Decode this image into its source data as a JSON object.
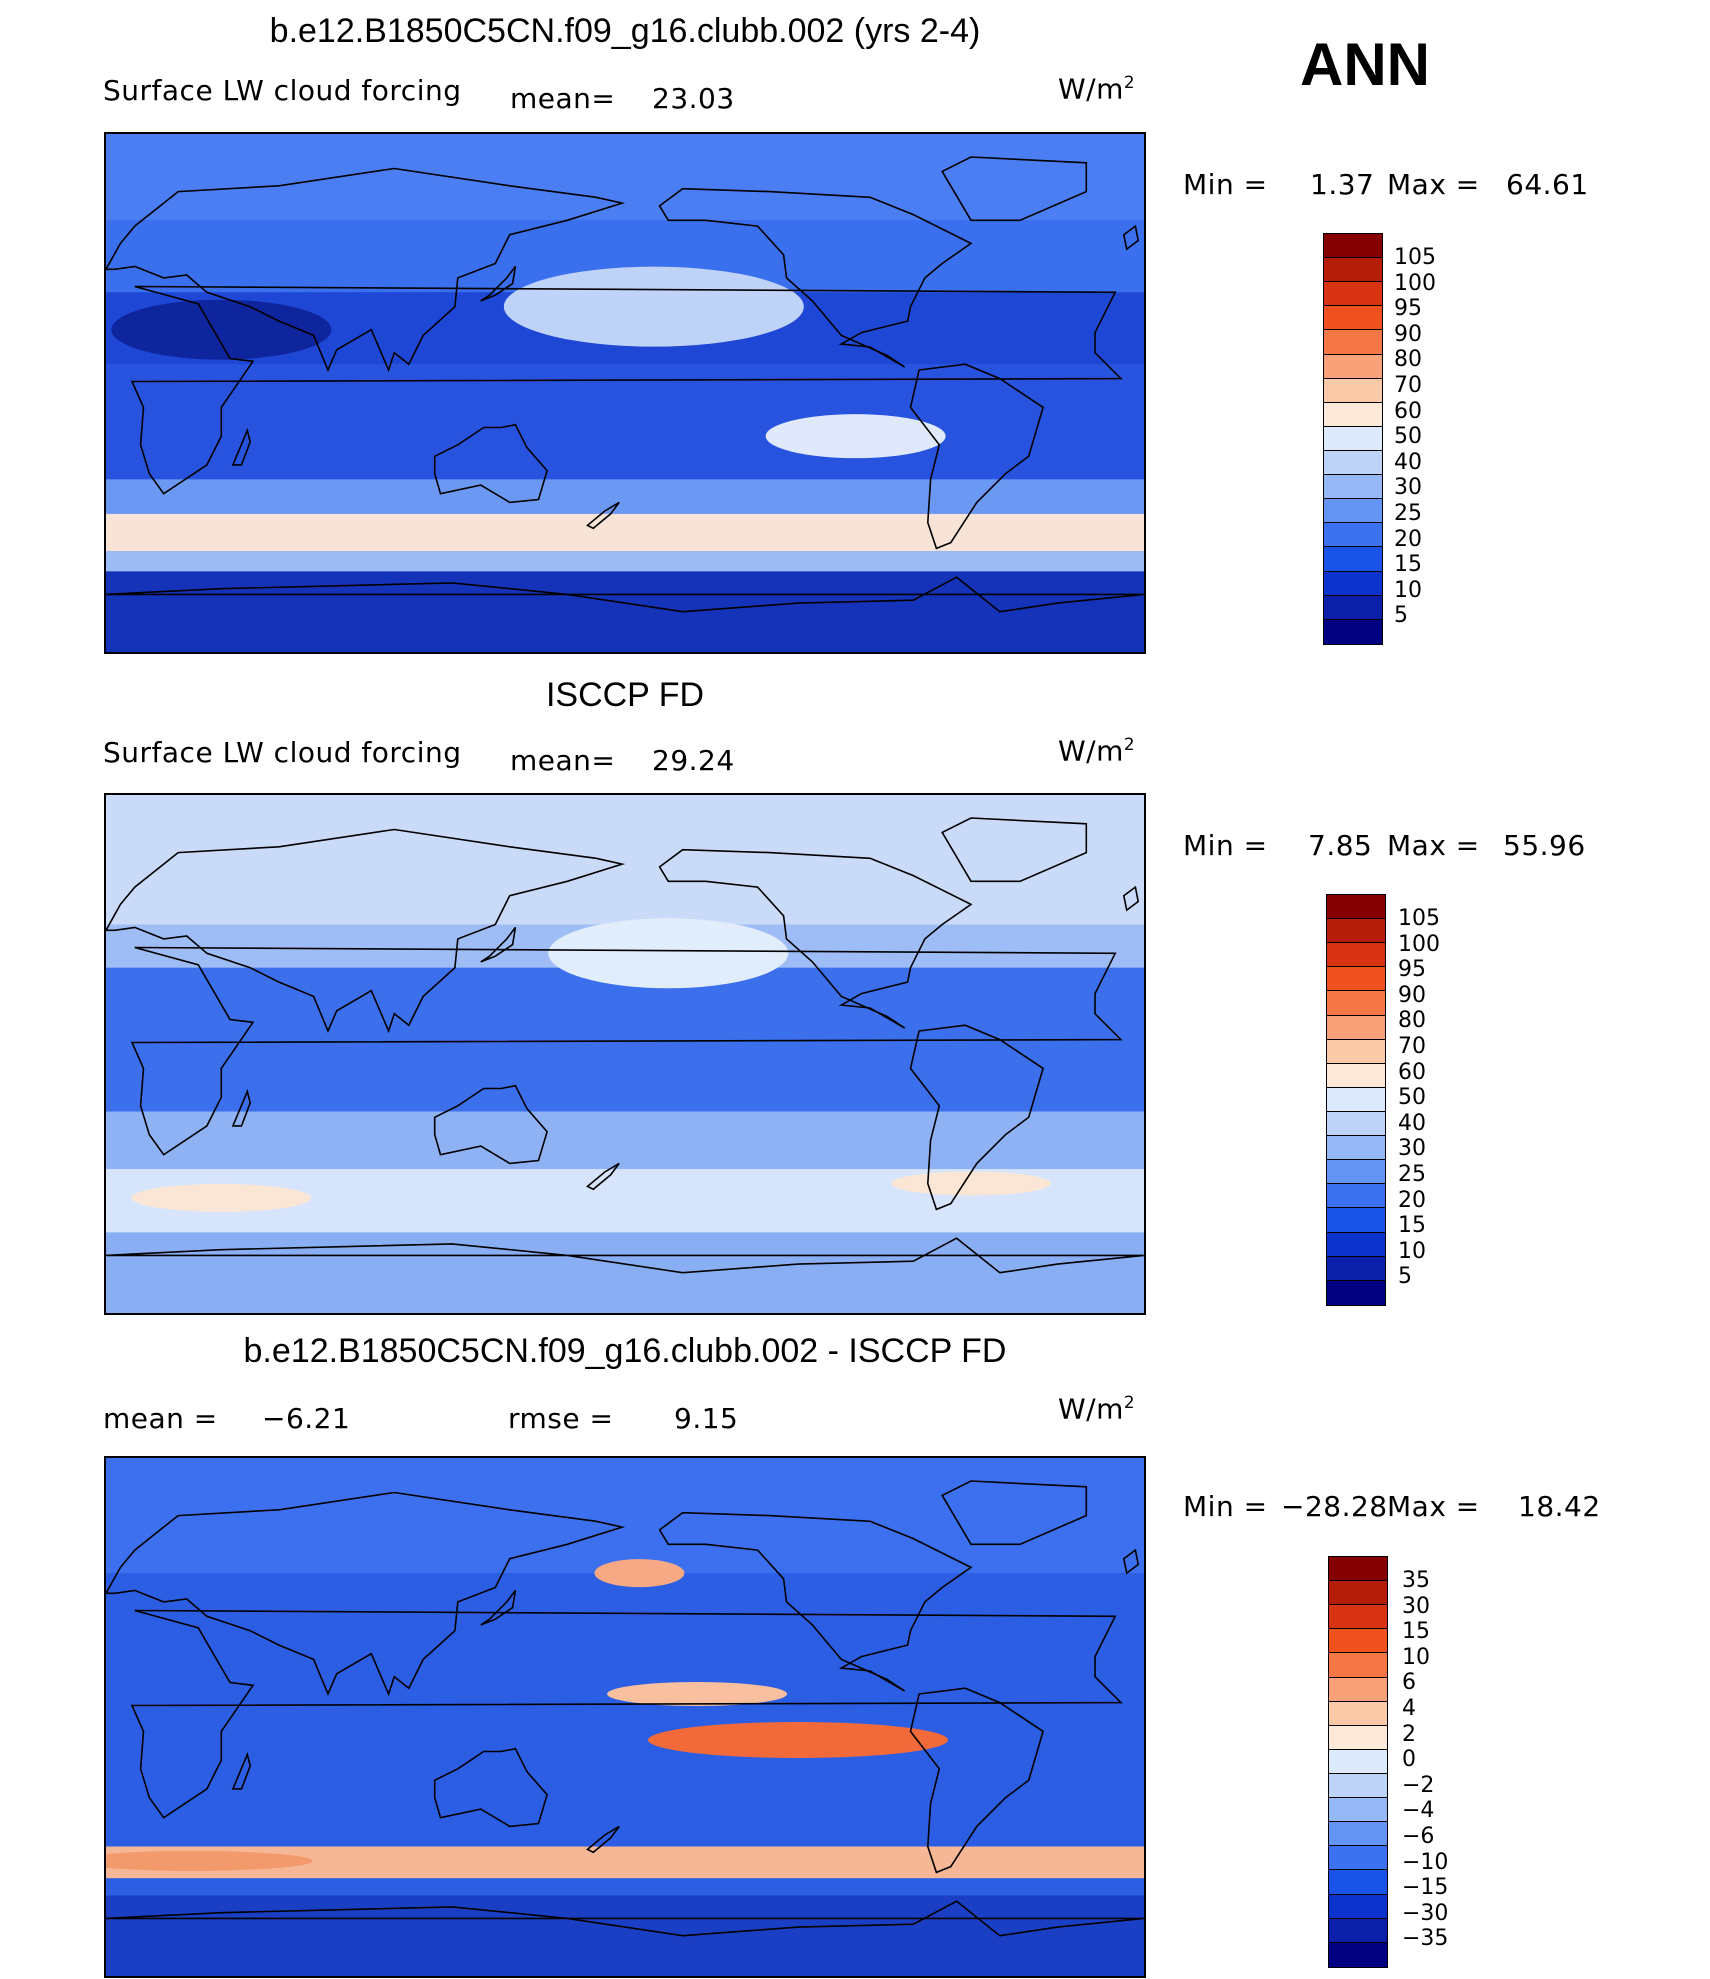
{
  "annual_label": "ANN",
  "colors": {
    "levels_full": [
      "#000080",
      "#0b1fa8",
      "#0c33cc",
      "#1a53e8",
      "#3c72f0",
      "#6495f5",
      "#96b8f7",
      "#bdd3f7",
      "#ddeafb",
      "#fde9d9",
      "#fac9a8",
      "#f9a27a",
      "#f57745",
      "#f0521f",
      "#d83312",
      "#b51d08",
      "#850000"
    ],
    "land_outline": "#000000",
    "frame": "#000000"
  },
  "panels": [
    {
      "title": "b.e12.B1850C5CN.f09_g16.clubb.002 (yrs 2-4)",
      "variable": "Surface LW cloud forcing",
      "stat1_label": "mean=",
      "stat1_value": "23.03",
      "units": "W/m",
      "units_exp": "2",
      "min_label": "Min =",
      "min_value": "1.37",
      "max_label": "Max =",
      "max_value": "64.61",
      "ticks": [
        "105",
        "100",
        "95",
        "90",
        "80",
        "70",
        "60",
        "50",
        "40",
        "30",
        "25",
        "20",
        "15",
        "10",
        "5"
      ]
    },
    {
      "title": "ISCCP FD",
      "variable": "Surface LW cloud forcing",
      "stat1_label": "mean=",
      "stat1_value": "29.24",
      "units": "W/m",
      "units_exp": "2",
      "min_label": "Min =",
      "min_value": "7.85",
      "max_label": "Max =",
      "max_value": "55.96",
      "ticks": [
        "105",
        "100",
        "95",
        "90",
        "80",
        "70",
        "60",
        "50",
        "40",
        "30",
        "25",
        "20",
        "15",
        "10",
        "5"
      ]
    },
    {
      "title": "b.e12.B1850C5CN.f09_g16.clubb.002 - ISCCP FD",
      "stat1_label": "mean =",
      "stat1_value": "−6.21",
      "stat2_label": "rmse =",
      "stat2_value": "9.15",
      "units": "W/m",
      "units_exp": "2",
      "min_label": "Min =",
      "min_value": "−28.28",
      "max_label": "Max =",
      "max_value": "18.42",
      "ticks": [
        "35",
        "30",
        "15",
        "10",
        "6",
        "4",
        "2",
        "0",
        "−2",
        "−4",
        "−6",
        "−10",
        "−15",
        "−30",
        "−35"
      ]
    }
  ],
  "chart_data": [
    {
      "type": "heatmap",
      "title": "b.e12.B1850C5CN.f09_g16.clubb.002 (yrs 2-4)",
      "field": "Surface LW cloud forcing",
      "units": "W/m2",
      "mean": 23.03,
      "min": 1.37,
      "max": 64.61,
      "contour_levels": [
        5,
        10,
        15,
        20,
        25,
        30,
        40,
        50,
        60,
        70,
        80,
        90,
        95,
        100,
        105
      ],
      "projection": "cylindrical equidistant, Pacific-centered"
    },
    {
      "type": "heatmap",
      "title": "ISCCP FD",
      "field": "Surface LW cloud forcing",
      "units": "W/m2",
      "mean": 29.24,
      "min": 7.85,
      "max": 55.96,
      "contour_levels": [
        5,
        10,
        15,
        20,
        25,
        30,
        40,
        50,
        60,
        70,
        80,
        90,
        95,
        100,
        105
      ],
      "projection": "cylindrical equidistant, Pacific-centered"
    },
    {
      "type": "heatmap",
      "title": "b.e12.B1850C5CN.f09_g16.clubb.002 - ISCCP FD",
      "units": "W/m2",
      "mean": -6.21,
      "rmse": 9.15,
      "min": -28.28,
      "max": 18.42,
      "contour_levels": [
        -35,
        -30,
        -15,
        -10,
        -6,
        -4,
        -2,
        0,
        2,
        4,
        6,
        10,
        15,
        30,
        35
      ],
      "projection": "cylindrical equidistant, Pacific-centered"
    }
  ]
}
